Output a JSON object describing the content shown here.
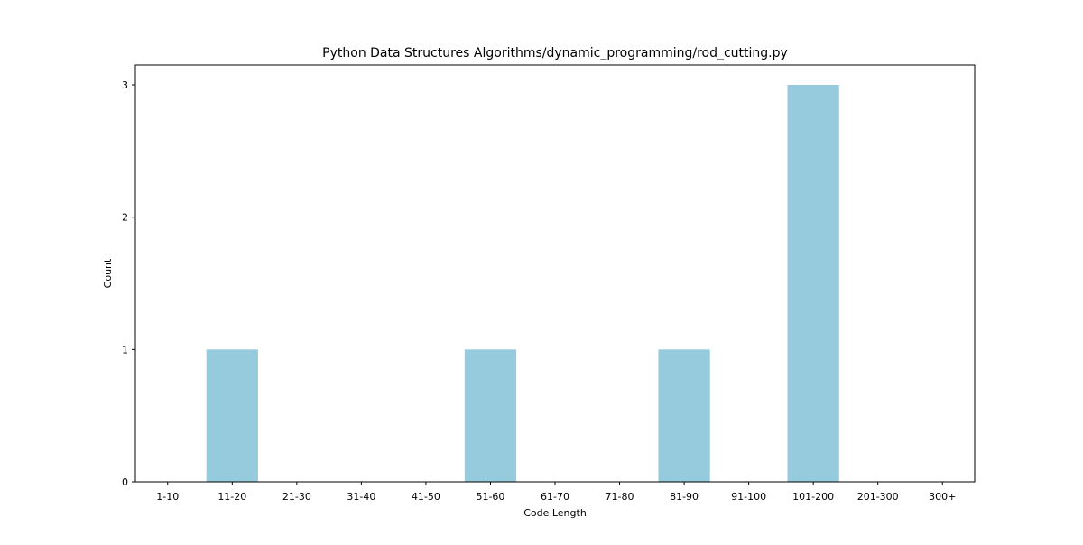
{
  "chart_data": {
    "type": "bar",
    "title": "Python Data Structures Algorithms/dynamic_programming/rod_cutting.py",
    "xlabel": "Code Length",
    "ylabel": "Count",
    "categories": [
      "1-10",
      "11-20",
      "21-30",
      "31-40",
      "41-50",
      "51-60",
      "61-70",
      "71-80",
      "81-90",
      "91-100",
      "101-200",
      "201-300",
      "300+"
    ],
    "values": [
      0,
      1,
      0,
      0,
      0,
      1,
      0,
      0,
      1,
      0,
      3,
      0,
      0
    ],
    "ylim": [
      0,
      3.15
    ],
    "yticks": [
      0,
      1,
      2,
      3
    ],
    "bar_color": "#96cadd",
    "grid": false,
    "legend": "none"
  }
}
